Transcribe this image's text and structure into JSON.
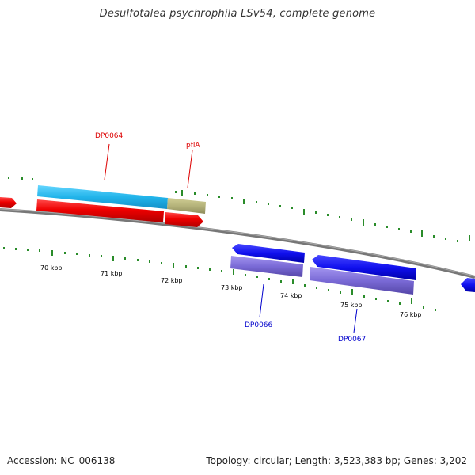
{
  "title": "Desulfotalea psychrophila LSv54, complete genome",
  "footer": {
    "accession": "Accession: NC_006138",
    "topology": "Topology: circular; Length: 3,523,383 bp; Genes: 3,202"
  },
  "colors": {
    "forward_cds": "#ee0000",
    "forward_blast": "#33bbee",
    "forward_rna": "#b5b37a",
    "reverse_cds": "#1111ee",
    "reverse_blast": "#7a6ad6",
    "backbone": "#7f7f7f",
    "tick": "#2a8c2a",
    "forward_label": "#dd0000",
    "reverse_label": "#0000cc"
  },
  "ruler_labels": [
    "70 kbp",
    "71 kbp",
    "72 kbp",
    "73 kbp",
    "74 kbp",
    "75 kbp",
    "76 kbp"
  ],
  "gene_labels": [
    {
      "text": "DP0064",
      "strand": "forward"
    },
    {
      "text": "pflA",
      "strand": "forward"
    },
    {
      "text": "DP0066",
      "strand": "reverse"
    },
    {
      "text": "DP0067",
      "strand": "reverse"
    }
  ]
}
